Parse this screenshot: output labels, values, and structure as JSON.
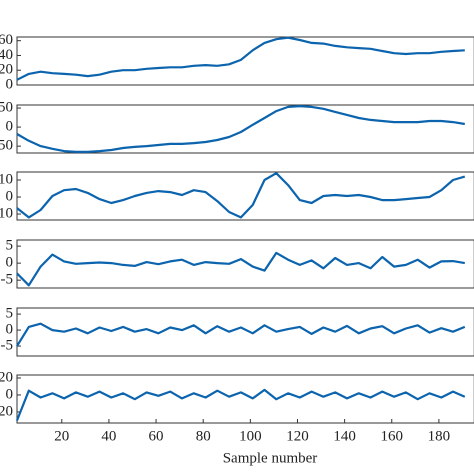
{
  "chart_data": [
    {
      "type": "line",
      "xlim": [
        1,
        195
      ],
      "ylim": [
        0,
        65
      ],
      "yticks": [
        0,
        20,
        40,
        60
      ],
      "x": [
        1,
        6,
        11,
        16,
        21,
        26,
        31,
        36,
        41,
        46,
        51,
        56,
        61,
        66,
        71,
        76,
        81,
        86,
        91,
        96,
        101,
        106,
        111,
        116,
        121,
        126,
        131,
        136,
        141,
        146,
        151,
        156,
        161,
        166,
        171,
        176,
        181,
        186,
        191
      ],
      "series": [
        {
          "color": "#0b64ad",
          "values": [
            7,
            15,
            18,
            16,
            15,
            14,
            12,
            14,
            18,
            20,
            20,
            22,
            23,
            24,
            24,
            26,
            27,
            26,
            28,
            34,
            47,
            57,
            62,
            64,
            61,
            57,
            56,
            53,
            51,
            50,
            49,
            46,
            43,
            42,
            43,
            43,
            45,
            46,
            47
          ]
        }
      ]
    },
    {
      "type": "line",
      "xlim": [
        1,
        195
      ],
      "ylim": [
        -68,
        58
      ],
      "yticks": [
        -50,
        0,
        50
      ],
      "x": [
        1,
        6,
        11,
        16,
        21,
        26,
        31,
        36,
        41,
        46,
        51,
        56,
        61,
        66,
        71,
        76,
        81,
        86,
        91,
        96,
        101,
        106,
        111,
        116,
        121,
        126,
        131,
        136,
        141,
        146,
        151,
        156,
        161,
        166,
        171,
        176,
        181,
        186,
        191
      ],
      "series": [
        {
          "color": "#0b64ad",
          "values": [
            -18,
            -36,
            -50,
            -57,
            -63,
            -65,
            -65,
            -63,
            -60,
            -55,
            -52,
            -50,
            -47,
            -44,
            -44,
            -42,
            -39,
            -34,
            -26,
            -13,
            6,
            24,
            42,
            53,
            55,
            53,
            48,
            40,
            32,
            24,
            19,
            16,
            13,
            13,
            13,
            16,
            16,
            13,
            8
          ]
        }
      ]
    },
    {
      "type": "line",
      "xlim": [
        1,
        195
      ],
      "ylim": [
        -13.5,
        14.7
      ],
      "yticks": [
        -10,
        0,
        10
      ],
      "x": [
        1,
        6,
        11,
        16,
        21,
        26,
        31,
        36,
        41,
        46,
        51,
        56,
        61,
        66,
        71,
        76,
        81,
        86,
        91,
        96,
        101,
        106,
        111,
        116,
        121,
        126,
        131,
        136,
        141,
        146,
        151,
        156,
        161,
        166,
        171,
        176,
        181,
        186,
        191
      ],
      "series": [
        {
          "color": "#0b64ad",
          "values": [
            -6.5,
            -12,
            -7.6,
            0.6,
            4,
            4.7,
            2.4,
            -1.2,
            -3.5,
            -1.8,
            0.6,
            2.4,
            3.5,
            2.9,
            1.2,
            4,
            2.9,
            -2.4,
            -8.8,
            -12,
            -4.7,
            10,
            14,
            7,
            -1.8,
            -3.5,
            0.6,
            1.2,
            0.6,
            1.2,
            0,
            -1.8,
            -1.8,
            -1.2,
            -0.6,
            0,
            4,
            10,
            12
          ]
        }
      ]
    },
    {
      "type": "line",
      "xlim": [
        1,
        195
      ],
      "ylim": [
        -7.3,
        6.8
      ],
      "yticks": [
        -5,
        0,
        5
      ],
      "x": [
        1,
        6,
        11,
        16,
        21,
        26,
        31,
        36,
        41,
        46,
        51,
        56,
        61,
        66,
        71,
        76,
        81,
        86,
        91,
        96,
        101,
        106,
        111,
        116,
        121,
        126,
        131,
        136,
        141,
        146,
        151,
        156,
        161,
        166,
        171,
        176,
        181,
        186,
        191
      ],
      "series": [
        {
          "color": "#0b64ad",
          "values": [
            -3,
            -6.5,
            -1,
            2.5,
            0.5,
            -0.2,
            0,
            0.2,
            0,
            -0.5,
            -0.8,
            0.3,
            -0.3,
            0.5,
            1,
            -0.5,
            0.3,
            0,
            -0.2,
            1.2,
            -1,
            -2.2,
            3,
            1,
            -0.5,
            0.8,
            -1.5,
            1.5,
            -0.5,
            0,
            -1.5,
            1.8,
            -1,
            -0.5,
            1,
            -1.3,
            0.5,
            0.6,
            0
          ]
        }
      ]
    },
    {
      "type": "line",
      "xlim": [
        1,
        195
      ],
      "ylim": [
        -8.1,
        6.9
      ],
      "yticks": [
        -5,
        0,
        5
      ],
      "x": [
        1,
        6,
        11,
        16,
        21,
        26,
        31,
        36,
        41,
        46,
        51,
        56,
        61,
        66,
        71,
        76,
        81,
        86,
        91,
        96,
        101,
        106,
        111,
        116,
        121,
        126,
        131,
        136,
        141,
        146,
        151,
        156,
        161,
        166,
        171,
        176,
        181,
        186,
        191
      ],
      "series": [
        {
          "color": "#0b64ad",
          "values": [
            -5,
            1,
            2,
            0,
            -0.5,
            0.5,
            -1,
            0.8,
            -0.3,
            1,
            -0.5,
            0.3,
            -1,
            0.8,
            0,
            1.5,
            -1,
            1.2,
            -0.5,
            0.8,
            -1,
            1.5,
            -0.5,
            0.3,
            1,
            -1.2,
            0.8,
            -0.5,
            1.3,
            -1,
            0.5,
            1.2,
            -1,
            0.5,
            1.5,
            -0.8,
            0.6,
            -0.5,
            1
          ]
        }
      ]
    },
    {
      "type": "line",
      "xlim": [
        1,
        195
      ],
      "ylim": [
        -33,
        23.5
      ],
      "yticks": [
        -20,
        0,
        20
      ],
      "xlabel": "Sample number",
      "xticks": [
        20,
        40,
        60,
        80,
        100,
        120,
        140,
        160,
        180
      ],
      "x": [
        1,
        6,
        11,
        16,
        21,
        26,
        31,
        36,
        41,
        46,
        51,
        56,
        61,
        66,
        71,
        76,
        81,
        86,
        91,
        96,
        101,
        106,
        111,
        116,
        121,
        126,
        131,
        136,
        141,
        146,
        151,
        156,
        161,
        166,
        171,
        176,
        181,
        186,
        191
      ],
      "series": [
        {
          "color": "#0b64ad",
          "values": [
            -30,
            5,
            -3,
            2,
            -4,
            3,
            -2,
            4,
            -3,
            2,
            -5,
            3,
            -1,
            4,
            -4,
            2,
            -3,
            5,
            -2,
            3,
            -4,
            6,
            -5,
            2,
            -3,
            4,
            -2,
            3,
            -4,
            2,
            -3,
            4,
            -2,
            3,
            -5,
            2,
            -3,
            4,
            -2
          ]
        }
      ]
    }
  ]
}
